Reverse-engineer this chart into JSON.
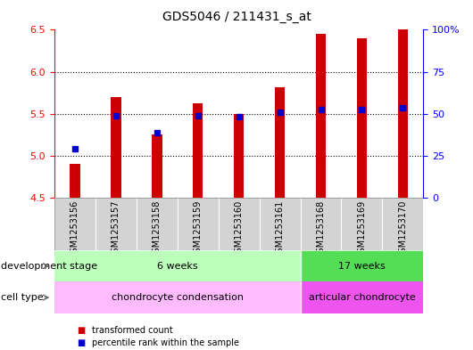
{
  "title": "GDS5046 / 211431_s_at",
  "samples": [
    "GSM1253156",
    "GSM1253157",
    "GSM1253158",
    "GSM1253159",
    "GSM1253160",
    "GSM1253161",
    "GSM1253168",
    "GSM1253169",
    "GSM1253170"
  ],
  "transformed_count": [
    4.9,
    5.7,
    5.25,
    5.62,
    5.5,
    5.82,
    6.45,
    6.4,
    6.5
  ],
  "percentile_rank_y": [
    5.08,
    5.48,
    5.27,
    5.48,
    5.47,
    5.52,
    5.55,
    5.55,
    5.57
  ],
  "ylim": [
    4.5,
    6.5
  ],
  "yticks_left": [
    4.5,
    5.0,
    5.5,
    6.0,
    6.5
  ],
  "yticks_right": [
    0,
    25,
    50,
    75,
    100
  ],
  "bar_color": "#cc0000",
  "dot_color": "#0000cc",
  "bar_bottom": 4.5,
  "bar_width": 0.25,
  "group1_count": 6,
  "group2_count": 3,
  "dev_stage_label1": "6 weeks",
  "dev_stage_label2": "17 weeks",
  "cell_type_label1": "chondrocyte condensation",
  "cell_type_label2": "articular chondrocyte",
  "dev_stage_color1": "#bbffbb",
  "dev_stage_color2": "#55dd55",
  "cell_type_color1": "#ffbbff",
  "cell_type_color2": "#ee55ee",
  "legend_tc": "transformed count",
  "legend_pr": "percentile rank within the sample",
  "row_label_dev": "development stage",
  "row_label_cell": "cell type",
  "title_fontsize": 10,
  "tick_fontsize": 8,
  "label_fontsize": 8,
  "dot_size": 4
}
